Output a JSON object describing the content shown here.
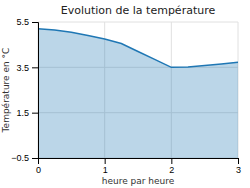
{
  "chart_data": {
    "type": "area",
    "title": "Evolution de la température",
    "xlabel": "heure par heure",
    "ylabel": "Température en °C",
    "x": [
      0,
      0.25,
      0.5,
      0.75,
      1.0,
      1.25,
      1.5,
      1.75,
      2.0,
      2.25,
      2.5,
      2.75,
      3.0
    ],
    "values": [
      5.2,
      5.15,
      5.05,
      4.9,
      4.75,
      4.55,
      4.2,
      3.85,
      3.5,
      3.52,
      3.58,
      3.65,
      3.72
    ],
    "xlim": [
      0,
      3
    ],
    "ylim": [
      -0.5,
      5.5
    ],
    "xticks": [
      0,
      1,
      2,
      3
    ],
    "yticks": [
      -0.5,
      1.5,
      3.5,
      5.5
    ],
    "grid": true
  }
}
